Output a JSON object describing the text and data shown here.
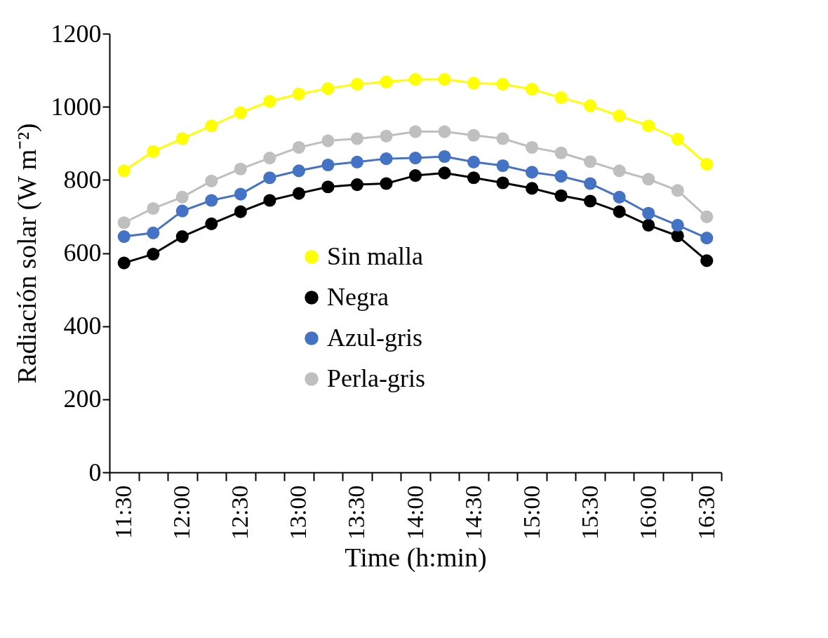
{
  "chart_data": {
    "type": "line",
    "xlabel": "Time (h:min)",
    "ylabel": "Radiación solar (W m⁻²)",
    "categories": [
      "11:30",
      null,
      "12:00",
      null,
      "12:30",
      null,
      "13:00",
      null,
      "13:30",
      null,
      "14:00",
      null,
      "14:30",
      null,
      "15:00",
      null,
      "15:30",
      null,
      "16:00",
      null,
      "16:30"
    ],
    "series": [
      {
        "name": "Sin malla",
        "color": "#ffff00",
        "values": [
          825,
          878,
          913,
          948,
          984,
          1015,
          1035,
          1050,
          1062,
          1068,
          1075,
          1075,
          1065,
          1062,
          1048,
          1025,
          1003,
          975,
          948,
          912,
          843
        ]
      },
      {
        "name": "Negra",
        "color": "#000000",
        "values": [
          573,
          597,
          645,
          680,
          713,
          744,
          763,
          781,
          787,
          790,
          812,
          819,
          806,
          792,
          777,
          757,
          742,
          713,
          676,
          647,
          579
        ]
      },
      {
        "name": "Azul-gris",
        "color": "#4472c4",
        "values": [
          645,
          655,
          715,
          744,
          761,
          806,
          825,
          841,
          849,
          858,
          860,
          864,
          849,
          839,
          821,
          810,
          790,
          753,
          709,
          676,
          641
        ]
      },
      {
        "name": "Perla-gris",
        "color": "#bfbfbf",
        "values": [
          683,
          722,
          753,
          797,
          830,
          860,
          889,
          907,
          913,
          920,
          932,
          932,
          922,
          913,
          889,
          874,
          850,
          825,
          802,
          771,
          699
        ]
      }
    ],
    "ylim": [
      0,
      1200
    ],
    "yticks": [
      0,
      200,
      400,
      600,
      800,
      1000,
      1200
    ],
    "grid": false,
    "legend": "bottom",
    "marker": "circle",
    "line_style": "solid"
  }
}
